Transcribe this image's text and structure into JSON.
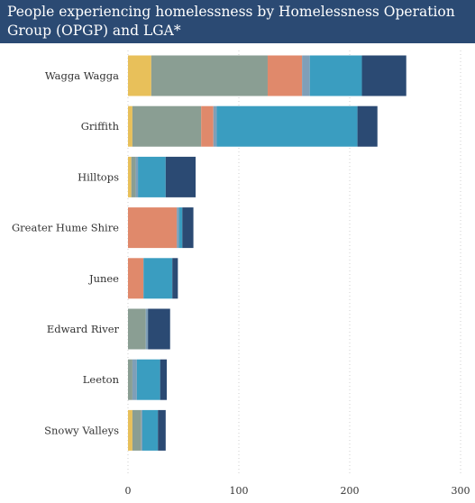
{
  "title": "People experiencing homelessness by Homelessness Operation Group (OPGP) and LGA*",
  "colors": {
    "title_bg": "#2b4a73",
    "segments": [
      "#e8c05a",
      "#8a9e93",
      "#e0896b",
      "#7f9fb8",
      "#3a9dc0",
      "#2b4a73"
    ]
  },
  "chart_data": {
    "type": "bar",
    "orientation": "horizontal",
    "stacked": true,
    "title": "People experiencing homelessness by Homelessness Operation Group (OPGP) and LGA*",
    "categories": [
      "Wagga Wagga",
      "Griffith",
      "Hilltops",
      "Greater Hume Shire",
      "Junee",
      "Edward River",
      "Leeton",
      "Snowy Valleys"
    ],
    "series": [
      {
        "values": [
          21,
          4,
          3,
          0,
          0,
          0,
          0,
          4
        ]
      },
      {
        "values": [
          105,
          62,
          4,
          0,
          0,
          16,
          4,
          8
        ]
      },
      {
        "values": [
          31,
          11,
          0,
          44,
          14,
          0,
          0,
          0
        ]
      },
      {
        "values": [
          7,
          3,
          2,
          2,
          0,
          2,
          4,
          1
        ]
      },
      {
        "values": [
          47,
          127,
          25,
          3,
          26,
          0,
          21,
          14
        ]
      },
      {
        "values": [
          40,
          18,
          27,
          10,
          5,
          20,
          6,
          7
        ]
      }
    ],
    "xlim": [
      0,
      300
    ],
    "xticks": [
      0,
      100,
      200,
      300
    ],
    "grid": "vertical-dotted",
    "legend": "none"
  }
}
